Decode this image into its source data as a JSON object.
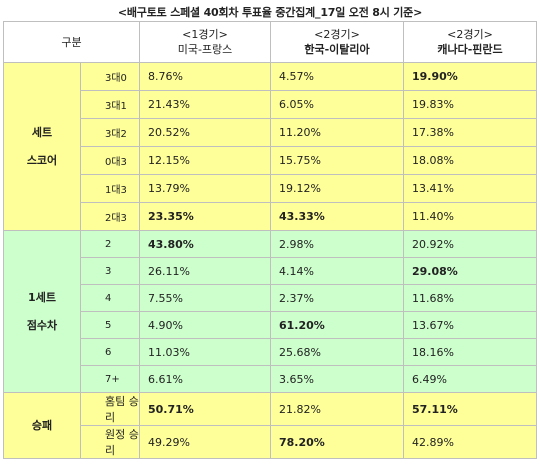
{
  "title": "<배구토토 스페셜 40회차 투표율 중간집계_17일 오전 8시 기준>",
  "header": {
    "gubun": "구분",
    "matches": [
      {
        "round": "<1경기>",
        "name": "미국-프랑스"
      },
      {
        "round": "<2경기>",
        "name": "한국-이탈리아"
      },
      {
        "round": "<2경기>",
        "name": "캐나다-핀란드"
      }
    ]
  },
  "groups": [
    {
      "label_lines": [
        "세트",
        "스코어"
      ],
      "rows": [
        {
          "sub": "3대0",
          "vals": [
            "8.76%",
            "4.57%",
            "19.90%"
          ],
          "bold": [
            false,
            false,
            true
          ]
        },
        {
          "sub": "3대1",
          "vals": [
            "21.43%",
            "6.05%",
            "19.83%"
          ],
          "bold": [
            false,
            false,
            false
          ]
        },
        {
          "sub": "3대2",
          "vals": [
            "20.52%",
            "11.20%",
            "17.38%"
          ],
          "bold": [
            false,
            false,
            false
          ]
        },
        {
          "sub": "0대3",
          "vals": [
            "12.15%",
            "15.75%",
            "18.08%"
          ],
          "bold": [
            false,
            false,
            false
          ]
        },
        {
          "sub": "1대3",
          "vals": [
            "13.79%",
            "19.12%",
            "13.41%"
          ],
          "bold": [
            false,
            false,
            false
          ]
        },
        {
          "sub": "2대3",
          "vals": [
            "23.35%",
            "43.33%",
            "11.40%"
          ],
          "bold": [
            true,
            true,
            false
          ]
        }
      ]
    },
    {
      "label_lines": [
        "1세트",
        "점수차"
      ],
      "rows": [
        {
          "sub": "2",
          "vals": [
            "43.80%",
            "2.98%",
            "20.92%"
          ],
          "bold": [
            true,
            false,
            false
          ]
        },
        {
          "sub": "3",
          "vals": [
            "26.11%",
            "4.14%",
            "29.08%"
          ],
          "bold": [
            false,
            false,
            true
          ]
        },
        {
          "sub": "4",
          "vals": [
            "7.55%",
            "2.37%",
            "11.68%"
          ],
          "bold": [
            false,
            false,
            false
          ]
        },
        {
          "sub": "5",
          "vals": [
            "4.90%",
            "61.20%",
            "13.67%"
          ],
          "bold": [
            false,
            true,
            false
          ]
        },
        {
          "sub": "6",
          "vals": [
            "11.03%",
            "25.68%",
            "18.16%"
          ],
          "bold": [
            false,
            false,
            false
          ]
        },
        {
          "sub": "7+",
          "vals": [
            "6.61%",
            "3.65%",
            "6.49%"
          ],
          "bold": [
            false,
            false,
            false
          ]
        }
      ]
    },
    {
      "label_lines": [
        "승패"
      ],
      "rows": [
        {
          "sub": "홈팀 승리",
          "vals": [
            "50.71%",
            "21.82%",
            "57.11%"
          ],
          "bold": [
            true,
            false,
            true
          ]
        },
        {
          "sub": "원정 승리",
          "vals": [
            "49.29%",
            "78.20%",
            "42.89%"
          ],
          "bold": [
            false,
            true,
            false
          ]
        }
      ]
    }
  ],
  "colors": {
    "yellow": "#ffff99",
    "green": "#ccffcc",
    "border": "#bfbfbf"
  }
}
